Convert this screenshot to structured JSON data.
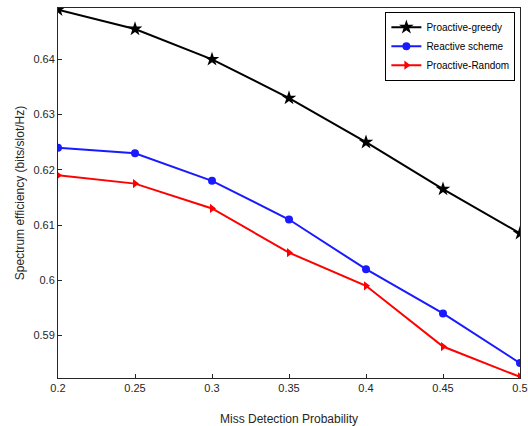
{
  "chart_data": {
    "type": "line",
    "x_label": "Miss Detection Probability",
    "y_label": "Spectrum efficiency (bits/slot/Hz)",
    "x": [
      0.2,
      0.25,
      0.3,
      0.35,
      0.4,
      0.45,
      0.5
    ],
    "series": [
      {
        "name": "Proactive-greedy",
        "color": "#000000",
        "marker": "star",
        "values": [
          0.649,
          0.6455,
          0.64,
          0.633,
          0.625,
          0.6165,
          0.6085
        ]
      },
      {
        "name": "Reactive scheme",
        "color": "#1a1aff",
        "marker": "circle",
        "values": [
          0.624,
          0.623,
          0.618,
          0.611,
          0.602,
          0.594,
          0.585
        ]
      },
      {
        "name": "Proactive-Random",
        "color": "#ff0000",
        "marker": "triangle-right",
        "values": [
          0.619,
          0.6175,
          0.613,
          0.605,
          0.599,
          0.588,
          0.5825
        ]
      }
    ],
    "xlim": [
      0.2,
      0.5
    ],
    "xticks": [
      0.2,
      0.25,
      0.3,
      0.35,
      0.4,
      0.45,
      0.5
    ],
    "ylim": [
      0.5823,
      0.6493
    ],
    "yticks": [
      0.59,
      0.6,
      0.61,
      0.62,
      0.63,
      0.64
    ],
    "grid": false,
    "legend": "top-right"
  }
}
